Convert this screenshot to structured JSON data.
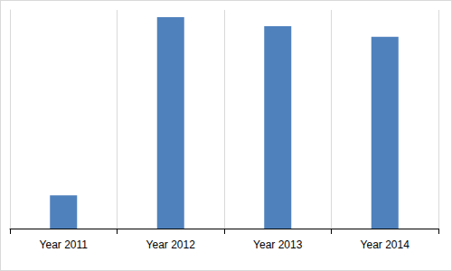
{
  "chart_data": {
    "type": "bar",
    "categories": [
      "Year 2011",
      "Year 2012",
      "Year 2013",
      "Year 2014"
    ],
    "values": [
      15.2,
      96.7,
      92.6,
      87.7
    ],
    "color": "#4f81bd",
    "ylim": [
      0,
      100
    ],
    "grid": true,
    "tick_labels": "x"
  }
}
